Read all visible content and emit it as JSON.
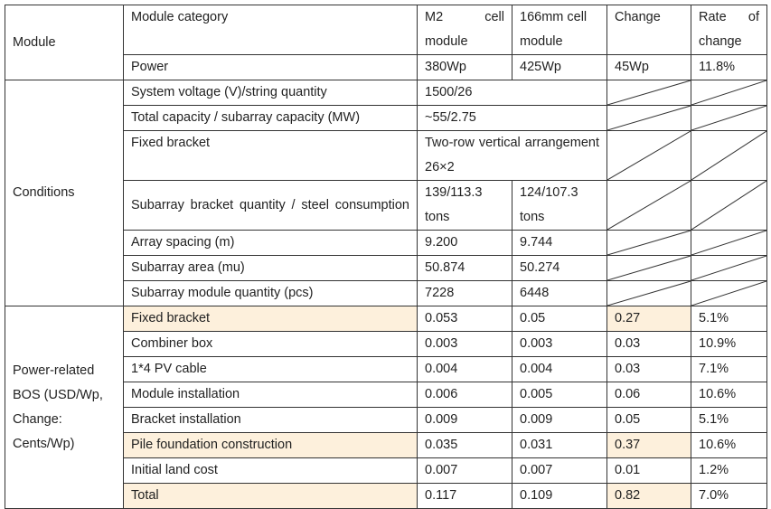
{
  "header": {
    "module": "Module",
    "module_category": "Module category",
    "m2": "M2 cell module",
    "m166": "166mm cell module",
    "change": "Change",
    "rate": "Rate of change"
  },
  "power": {
    "label": "Power",
    "m2": "380Wp",
    "m166": "425Wp",
    "change": "45Wp",
    "rate": "11.8%"
  },
  "conditions": {
    "label": "Conditions",
    "rows": [
      {
        "label": "System voltage (V)/string quantity",
        "value": "1500/26"
      },
      {
        "label": "Total capacity / subarray capacity (MW)",
        "value": "~55/2.75"
      },
      {
        "label": "Fixed bracket",
        "value": "Two-row vertical arrangement 26×2"
      },
      {
        "label": "Subarray bracket quantity / steel consumption",
        "m2": "139/113.3 tons",
        "m166": "124/107.3 tons"
      },
      {
        "label": "Array spacing (m)",
        "m2": "9.200",
        "m166": "9.744"
      },
      {
        "label": "Subarray area (mu)",
        "m2": "50.874",
        "m166": "50.274"
      },
      {
        "label": "Subarray module quantity (pcs)",
        "m2": "7228",
        "m166": "6448"
      }
    ]
  },
  "bos": {
    "label": "Power-related BOS (USD/Wp, Change: Cents/Wp)",
    "highlight_color": "#fdf0dc",
    "rows": [
      {
        "label": "Fixed bracket",
        "m2": "0.053",
        "m166": "0.05",
        "change": "0.27",
        "rate": "5.1%",
        "highlight": true
      },
      {
        "label": "Combiner box",
        "m2": "0.003",
        "m166": "0.003",
        "change": "0.03",
        "rate": "10.9%"
      },
      {
        "label": "1*4 PV cable",
        "m2": "0.004",
        "m166": "0.004",
        "change": "0.03",
        "rate": "7.1%"
      },
      {
        "label": "Module installation",
        "m2": "0.006",
        "m166": "0.005",
        "change": "0.06",
        "rate": "10.6%"
      },
      {
        "label": "Bracket installation",
        "m2": "0.009",
        "m166": "0.009",
        "change": "0.05",
        "rate": "5.1%"
      },
      {
        "label": "Pile foundation construction",
        "m2": "0.035",
        "m166": "0.031",
        "change": "0.37",
        "rate": "10.6%",
        "highlight": true
      },
      {
        "label": "Initial land cost",
        "m2": "0.007",
        "m166": "0.007",
        "change": "0.01",
        "rate": "1.2%"
      },
      {
        "label": "Total",
        "m2": "0.117",
        "m166": "0.109",
        "change": "0.82",
        "rate": "7.0%",
        "highlight": true
      }
    ]
  }
}
